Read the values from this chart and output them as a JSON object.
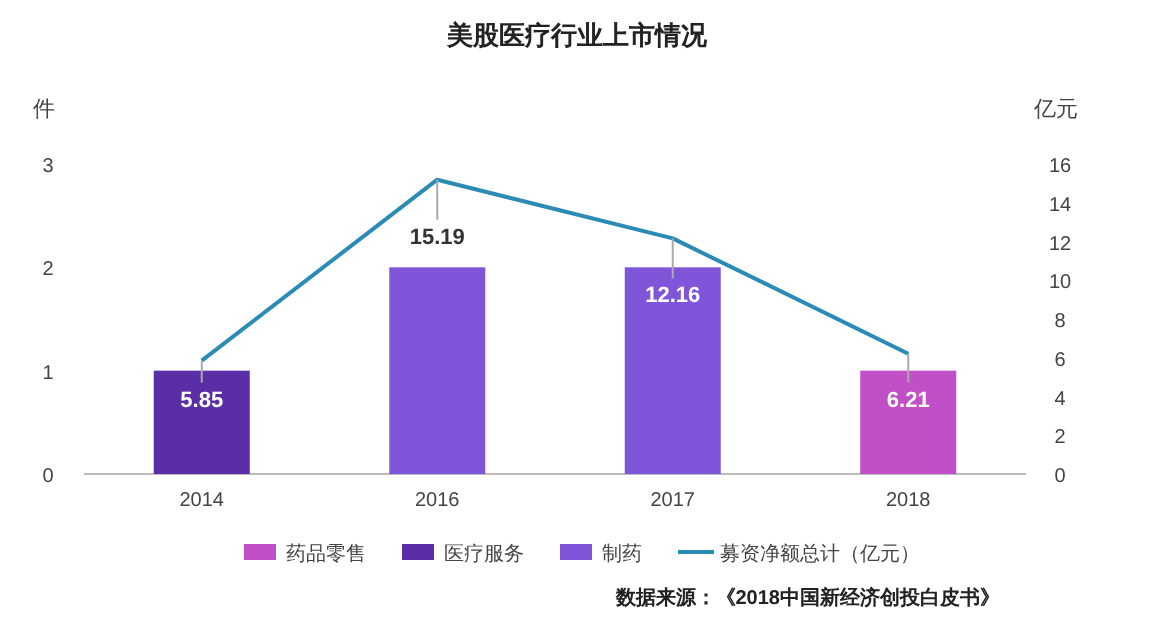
{
  "chart_data": {
    "type": "bar",
    "title": "美股医疗行业上市情况",
    "categories": [
      "2014",
      "2016",
      "2017",
      "2018"
    ],
    "stacked": true,
    "ylabel": "件",
    "y2label": "亿元",
    "ylim": [
      0,
      3
    ],
    "yticks": [
      0,
      1,
      2,
      3
    ],
    "y2lim": [
      0,
      16
    ],
    "y2ticks": [
      0,
      2,
      4,
      6,
      8,
      10,
      12,
      14,
      16
    ],
    "grid": false,
    "legend": "bottom",
    "series": [
      {
        "name": "药品零售",
        "color": "#c04fc8",
        "values": [
          null,
          null,
          null,
          1
        ]
      },
      {
        "name": "医疗服务",
        "color": "#5a2ea6",
        "values": [
          1,
          null,
          null,
          null
        ]
      },
      {
        "name": "制药",
        "color": "#7f56d9",
        "values": [
          null,
          2,
          2,
          null
        ]
      },
      {
        "name": "募资净额总计（亿元）",
        "type": "line",
        "axis": "y2",
        "color": "#2a8bb5",
        "values": [
          5.85,
          15.19,
          12.16,
          6.21
        ],
        "data_labels": true
      }
    ],
    "annotations": [
      "数据来源：《2018中国新经济创投白皮书》"
    ]
  }
}
